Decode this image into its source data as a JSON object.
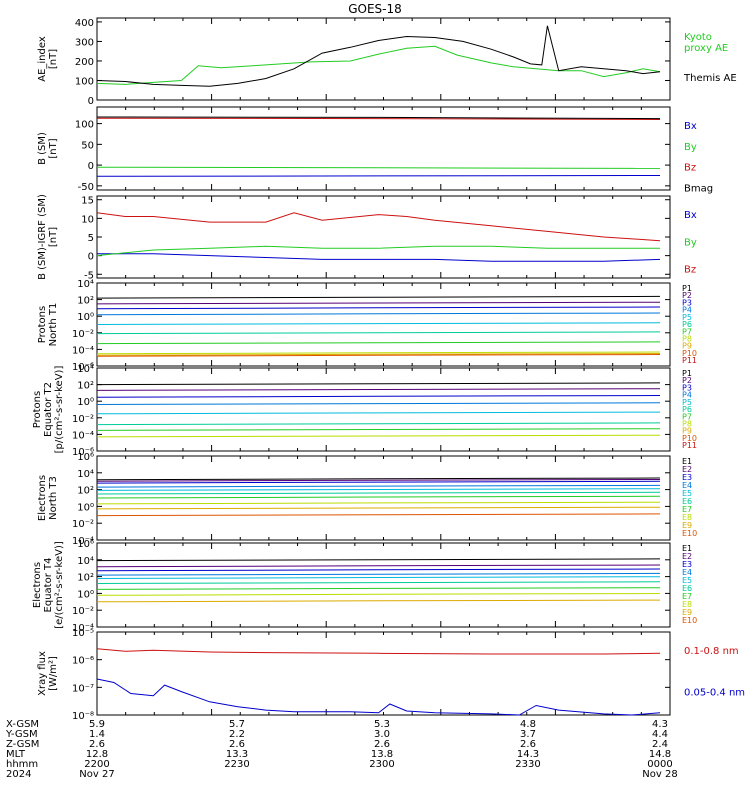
{
  "title": "GOES-18",
  "colors": {
    "black": "#000000",
    "blue": "#0000cc",
    "green": "#22cc22",
    "red": "#cc1111",
    "P": [
      "#000000",
      "#550077",
      "#0000cc",
      "#0077dd",
      "#00bbdd",
      "#00cc99",
      "#22cc22",
      "#bbdd00",
      "#ddaa00",
      "#dd5500",
      "#cc1111"
    ],
    "E": [
      "#000000",
      "#550077",
      "#0000cc",
      "#0077dd",
      "#00bbdd",
      "#00cc99",
      "#22cc22",
      "#bbdd00",
      "#ddaa00",
      "#dd5500",
      "#aa0000"
    ]
  },
  "chart_data": [
    {
      "id": "ae",
      "type": "line",
      "ylabel": "AE_index\n[nT]",
      "ylim": [
        0,
        420
      ],
      "log": false,
      "yticks": [
        0,
        100,
        200,
        300,
        400
      ],
      "ytick_labels": [
        "0",
        "100",
        "200",
        "300",
        "400"
      ],
      "series": [
        {
          "name": "Kyoto\nproxy AE",
          "color": "green",
          "x": [
            0,
            0.05,
            0.1,
            0.15,
            0.18,
            0.22,
            0.3,
            0.38,
            0.45,
            0.5,
            0.55,
            0.6,
            0.64,
            0.7,
            0.74,
            0.78,
            0.82,
            0.86,
            0.9,
            0.94,
            0.97,
            1.0
          ],
          "y": [
            85,
            80,
            90,
            100,
            175,
            165,
            180,
            195,
            200,
            235,
            265,
            275,
            230,
            190,
            170,
            160,
            150,
            150,
            120,
            140,
            160,
            145
          ]
        },
        {
          "name": "Themis AE",
          "color": "black",
          "x": [
            0,
            0.05,
            0.1,
            0.15,
            0.2,
            0.25,
            0.3,
            0.35,
            0.4,
            0.45,
            0.5,
            0.55,
            0.6,
            0.65,
            0.7,
            0.74,
            0.77,
            0.79,
            0.8,
            0.82,
            0.86,
            0.9,
            0.94,
            0.97,
            1.0
          ],
          "y": [
            100,
            95,
            80,
            75,
            70,
            85,
            110,
            160,
            240,
            270,
            305,
            325,
            320,
            300,
            260,
            220,
            185,
            180,
            380,
            150,
            170,
            160,
            150,
            135,
            145
          ]
        }
      ]
    },
    {
      "id": "bsm",
      "type": "line",
      "ylabel": "B (SM)\n[nT]",
      "ylim": [
        -60,
        140
      ],
      "log": false,
      "yticks": [
        -50,
        0,
        50,
        100
      ],
      "ytick_labels": [
        "-50",
        "0",
        "50",
        "100"
      ],
      "series": [
        {
          "name": "Bx",
          "color": "blue",
          "x": [
            0,
            1
          ],
          "y": [
            -27,
            -25
          ]
        },
        {
          "name": "By",
          "color": "green",
          "x": [
            0,
            1
          ],
          "y": [
            -5,
            -8
          ]
        },
        {
          "name": "Bz",
          "color": "red",
          "x": [
            0,
            0.5,
            1
          ],
          "y": [
            113,
            112,
            110
          ]
        },
        {
          "name": "Bmag",
          "color": "black",
          "x": [
            0,
            0.5,
            1
          ],
          "y": [
            116,
            115,
            112
          ]
        }
      ]
    },
    {
      "id": "bigrf",
      "type": "line",
      "ylabel": "B (SM)-IGRF (SM)\n[nT]",
      "ylim": [
        -6,
        16
      ],
      "log": false,
      "yticks": [
        -5,
        0,
        5,
        10,
        15
      ],
      "ytick_labels": [
        "-5",
        "0",
        "5",
        "10",
        "15"
      ],
      "series": [
        {
          "name": "Bx",
          "color": "blue",
          "x": [
            0,
            0.1,
            0.2,
            0.3,
            0.4,
            0.5,
            0.6,
            0.7,
            0.8,
            0.9,
            1.0
          ],
          "y": [
            0.5,
            0.5,
            0,
            -0.5,
            -1,
            -1,
            -1,
            -1.5,
            -1.5,
            -1.5,
            -1
          ]
        },
        {
          "name": "By",
          "color": "green",
          "x": [
            0,
            0.1,
            0.2,
            0.3,
            0.4,
            0.5,
            0.6,
            0.7,
            0.8,
            0.9,
            1.0
          ],
          "y": [
            0,
            1.5,
            2,
            2.5,
            2,
            2,
            2.5,
            2.5,
            2,
            2,
            2
          ]
        },
        {
          "name": "Bz",
          "color": "red",
          "x": [
            0,
            0.05,
            0.1,
            0.2,
            0.3,
            0.35,
            0.4,
            0.5,
            0.55,
            0.6,
            0.7,
            0.8,
            0.9,
            1.0
          ],
          "y": [
            11.5,
            10.5,
            10.5,
            9,
            9,
            11.5,
            9.5,
            11,
            10.5,
            9.5,
            8,
            6.5,
            5,
            4
          ]
        }
      ]
    },
    {
      "id": "protons_t1",
      "type": "line",
      "ylabel": "Protons\nNorth T1",
      "log": true,
      "ylim": [
        1e-06,
        10000.0
      ],
      "yticks": [
        10000.0,
        100.0,
        1,
        0.01,
        0.0001,
        1e-06
      ],
      "ytick_labels": [
        "10⁴",
        "10²",
        "10⁰",
        "10⁻²",
        "10⁻⁴",
        "10⁻⁶"
      ],
      "legend": [
        "P1",
        "P2",
        "P3",
        "P4",
        "P5",
        "P6",
        "P7",
        "P8",
        "P9",
        "P10",
        "P11"
      ],
      "series": [
        {
          "name": "P1",
          "color": "P0",
          "level": 150
        },
        {
          "name": "P2",
          "color": "P1",
          "level": 30
        },
        {
          "name": "P3",
          "color": "P2",
          "level": 8
        },
        {
          "name": "P4",
          "color": "P3",
          "level": 1.5
        },
        {
          "name": "P5",
          "color": "P4",
          "level": 0.1
        },
        {
          "name": "P6",
          "color": "P5",
          "level": 0.008
        },
        {
          "name": "P7",
          "color": "P6",
          "level": 0.0005
        },
        {
          "name": "P8",
          "color": "P7",
          "level": 3e-05
        },
        {
          "name": "P9",
          "color": "P8",
          "level": 2e-05
        },
        {
          "name": "P10",
          "color": "P9",
          "level": 1.5e-05
        }
      ]
    },
    {
      "id": "protons_t2",
      "type": "line",
      "ylabel": "Protons\nEquator T2\n[p/(cm²-s-sr-keV)]",
      "log": true,
      "ylim": [
        1e-06,
        10000.0
      ],
      "yticks": [
        10000.0,
        100.0,
        1,
        0.01,
        0.0001,
        1e-06
      ],
      "ytick_labels": [
        "10⁴",
        "10²",
        "10⁰",
        "10⁻²",
        "10⁻⁴",
        "10⁻⁶"
      ],
      "legend": [
        "P1",
        "P2",
        "P3",
        "P4",
        "P5",
        "P6",
        "P7",
        "P8",
        "P9",
        "P10",
        "P11"
      ],
      "series": [
        {
          "name": "P1",
          "color": "P0",
          "level": 100
        },
        {
          "name": "P2",
          "color": "P1",
          "level": 20
        },
        {
          "name": "P3",
          "color": "P2",
          "level": 3
        },
        {
          "name": "P4",
          "color": "P3",
          "level": 0.4
        },
        {
          "name": "P5",
          "color": "P4",
          "level": 0.03
        },
        {
          "name": "P6",
          "color": "P5",
          "level": 0.0015
        },
        {
          "name": "P7",
          "color": "P6",
          "level": 0.0003
        },
        {
          "name": "P8",
          "color": "P7",
          "level": 5e-05
        }
      ]
    },
    {
      "id": "electrons_t3",
      "type": "line",
      "ylabel": "Electrons\nNorth T3",
      "log": true,
      "ylim": [
        0.0001,
        1000000.0
      ],
      "yticks": [
        1000000.0,
        10000.0,
        100.0,
        1,
        0.01,
        0.0001
      ],
      "ytick_labels": [
        "10⁶",
        "10⁴",
        "10²",
        "10⁰",
        "10⁻²",
        "10⁻⁴"
      ],
      "legend": [
        "E1",
        "E2",
        "E3",
        "E4",
        "E5",
        "E6",
        "E7",
        "E8",
        "E9",
        "E10"
      ],
      "series": [
        {
          "name": "E1",
          "color": "E0",
          "level": 1500
        },
        {
          "name": "E2",
          "color": "E1",
          "level": 1000
        },
        {
          "name": "E3",
          "color": "E2",
          "level": 600
        },
        {
          "name": "E4",
          "color": "E3",
          "level": 200
        },
        {
          "name": "E5",
          "color": "E4",
          "level": 80
        },
        {
          "name": "E6",
          "color": "E5",
          "level": 30
        },
        {
          "name": "E7",
          "color": "E6",
          "level": 10
        },
        {
          "name": "E8",
          "color": "E7",
          "level": 2
        },
        {
          "name": "E9",
          "color": "E8",
          "level": 0.5
        },
        {
          "name": "E10",
          "color": "E9",
          "level": 0.08
        }
      ]
    },
    {
      "id": "electrons_t4",
      "type": "line",
      "ylabel": "Electrons\nEquator T4\n[e/(cm²-s-sr-keV)]",
      "log": true,
      "ylim": [
        0.0001,
        1000000.0
      ],
      "yticks": [
        1000000.0,
        10000.0,
        100.0,
        1,
        0.01,
        0.0001
      ],
      "ytick_labels": [
        "10⁶",
        "10⁴",
        "10²",
        "10⁰",
        "10⁻²",
        "10⁻⁴"
      ],
      "legend": [
        "E1",
        "E2",
        "E3",
        "E4",
        "E5",
        "E6",
        "E7",
        "E8",
        "E9",
        "E10"
      ],
      "series": [
        {
          "name": "E1",
          "color": "E0",
          "level": 8000
        },
        {
          "name": "E2",
          "color": "E1",
          "level": 1500
        },
        {
          "name": "E3",
          "color": "E2",
          "level": 500
        },
        {
          "name": "E4",
          "color": "E3",
          "level": 150
        },
        {
          "name": "E5",
          "color": "E4",
          "level": 60
        },
        {
          "name": "E6",
          "color": "E5",
          "level": 15
        },
        {
          "name": "E7",
          "color": "E6",
          "level": 3
        },
        {
          "name": "E8",
          "color": "E7",
          "level": 0.6
        },
        {
          "name": "E9",
          "color": "E8",
          "level": 0.1
        }
      ]
    },
    {
      "id": "xray",
      "type": "line",
      "ylabel": "Xray flux\n[W/m²]",
      "log": true,
      "ylim": [
        1e-08,
        1e-05
      ],
      "yticks": [
        1e-05,
        1e-06,
        1e-07,
        1e-08
      ],
      "ytick_labels": [
        "10⁻⁵",
        "10⁻⁶",
        "10⁻⁷",
        "10⁻⁸"
      ],
      "series": [
        {
          "name": "0.1-0.8 nm",
          "color": "red",
          "x": [
            0,
            0.05,
            0.1,
            0.2,
            0.3,
            0.5,
            0.7,
            0.9,
            1.0
          ],
          "y": [
            2.5e-06,
            2e-06,
            2.2e-06,
            1.9e-06,
            1.8e-06,
            1.7e-06,
            1.6e-06,
            1.6e-06,
            1.7e-06
          ]
        },
        {
          "name": "0.05-0.4 nm",
          "color": "blue",
          "x": [
            0,
            0.03,
            0.06,
            0.1,
            0.12,
            0.15,
            0.2,
            0.25,
            0.3,
            0.35,
            0.45,
            0.5,
            0.52,
            0.55,
            0.6,
            0.7,
            0.75,
            0.78,
            0.82,
            0.9,
            0.95,
            1.0
          ],
          "y": [
            2e-07,
            1.5e-07,
            6e-08,
            5e-08,
            1.2e-07,
            7e-08,
            3e-08,
            2e-08,
            1.5e-08,
            1.3e-08,
            1.3e-08,
            1.2e-08,
            2.5e-08,
            1.4e-08,
            1.2e-08,
            1.1e-08,
            1e-08,
            2.2e-08,
            1.5e-08,
            1.1e-08,
            1e-08,
            1.2e-08
          ]
        }
      ]
    }
  ],
  "footer": {
    "row_labels": [
      "X-GSM",
      "Y-GSM",
      "Z-GSM",
      "MLT",
      "hhmm",
      "2024"
    ],
    "columns": [
      [
        "5.9",
        "1.4",
        "2.6",
        "12.8",
        "2200",
        "Nov 27"
      ],
      [
        "5.7",
        "2.2",
        "2.6",
        "13.3",
        "2230",
        ""
      ],
      [
        "5.3",
        "3.0",
        "2.6",
        "13.8",
        "2300",
        ""
      ],
      [
        "4.8",
        "3.7",
        "2.6",
        "14.3",
        "2330",
        ""
      ],
      [
        "4.3",
        "4.4",
        "2.4",
        "14.8",
        "0000",
        "Nov 28"
      ]
    ]
  }
}
